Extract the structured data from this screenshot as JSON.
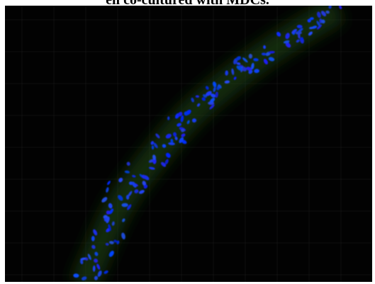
{
  "caption": {
    "text": "ell co-cultured with MDCs."
  }
}
